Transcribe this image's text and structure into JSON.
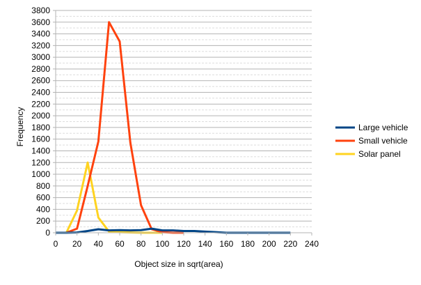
{
  "chart_data": {
    "type": "line",
    "title": "",
    "xlabel": "Object size in sqrt(area)",
    "ylabel": "Frequency",
    "xlim": [
      0,
      240
    ],
    "ylim": [
      0,
      3800
    ],
    "xticks": [
      0,
      20,
      40,
      60,
      80,
      100,
      120,
      140,
      160,
      180,
      200,
      220,
      240
    ],
    "yticks": [
      0,
      200,
      400,
      600,
      800,
      1000,
      1200,
      1400,
      1600,
      1800,
      2000,
      2200,
      2400,
      2600,
      2800,
      3000,
      3200,
      3400,
      3600,
      3800
    ],
    "grid": true,
    "legend_position": "right",
    "series": [
      {
        "name": "Large vehicle",
        "color": "#004586",
        "x": [
          0,
          10,
          20,
          30,
          40,
          50,
          60,
          70,
          80,
          90,
          100,
          110,
          120,
          130,
          140,
          150,
          160,
          170,
          180,
          190,
          200,
          210,
          220
        ],
        "values": [
          0,
          0,
          5,
          30,
          60,
          40,
          45,
          40,
          45,
          70,
          40,
          40,
          30,
          30,
          20,
          10,
          0,
          0,
          0,
          0,
          0,
          0,
          0
        ]
      },
      {
        "name": "Small vehicle",
        "color": "#ff420e",
        "x": [
          10,
          20,
          30,
          40,
          50,
          60,
          70,
          80,
          90,
          100,
          110,
          120
        ],
        "values": [
          0,
          70,
          800,
          1560,
          3600,
          3270,
          1540,
          470,
          60,
          10,
          0,
          0
        ]
      },
      {
        "name": "Solar panel",
        "color": "#ffd320",
        "x": [
          10,
          20,
          30,
          40,
          50,
          60,
          70,
          80,
          90,
          100
        ],
        "values": [
          0,
          380,
          1200,
          260,
          20,
          10,
          5,
          0,
          0,
          0
        ]
      }
    ]
  }
}
